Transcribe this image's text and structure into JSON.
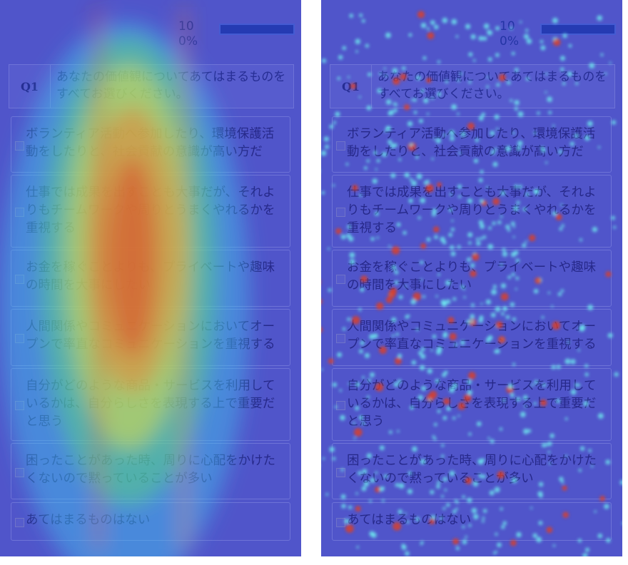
{
  "panels": [
    {
      "progress_count": "10",
      "progress_percent": "0%",
      "question": {
        "number": "Q1",
        "text": "あなたの価値観についてあてはまるものをすべてお選びください。"
      },
      "options": [
        "ボランティア活動へ参加したり、環境保護活動をしたりと、社会貢献の意識が高い方だ",
        "仕事では成果を出すことも大事だが、それよりもチームワークや周りとうまくやれるかを重視する",
        "お金を稼ぐことよりも、プライベートや趣味の時間を大事にしたい",
        "人間関係やコミュニケーションにおいてオープンで率直なコミュニケーションを重視する",
        "自分がどのような商品・サービスを利用しているかは、自分らしさを表現する上で重要だと思う",
        "困ったことがあった時、周りに心配をかけたくないので黙っていることが多い",
        "あてはまるものはない"
      ]
    },
    {
      "progress_count": "10",
      "progress_percent": "0%",
      "question": {
        "number": "Q1",
        "text": "あなたの価値観についてあてはまるものをすべてお選びください。"
      },
      "options": [
        "ボランティア活動へ参加したり、環境保護活動をしたりと、社会貢献の意識が高い方だ",
        "仕事では成果を出すことも大事だが、それよりもチームワークや周りとうまくやれるかを重視する",
        "お金を稼ぐことよりも、プライベートや趣味の時間を大事にしたい",
        "人間関係やコミュニケーションにおいてオープンで率直なコミュニケーションを重視する",
        "自分がどのような商品・サービスを利用しているかは、自分らしさを表現する上で重要だと思う",
        "困ったことがあった時、周りに心配をかけたくないので黙っていることが多い",
        "あてはまるものはない"
      ]
    }
  ]
}
